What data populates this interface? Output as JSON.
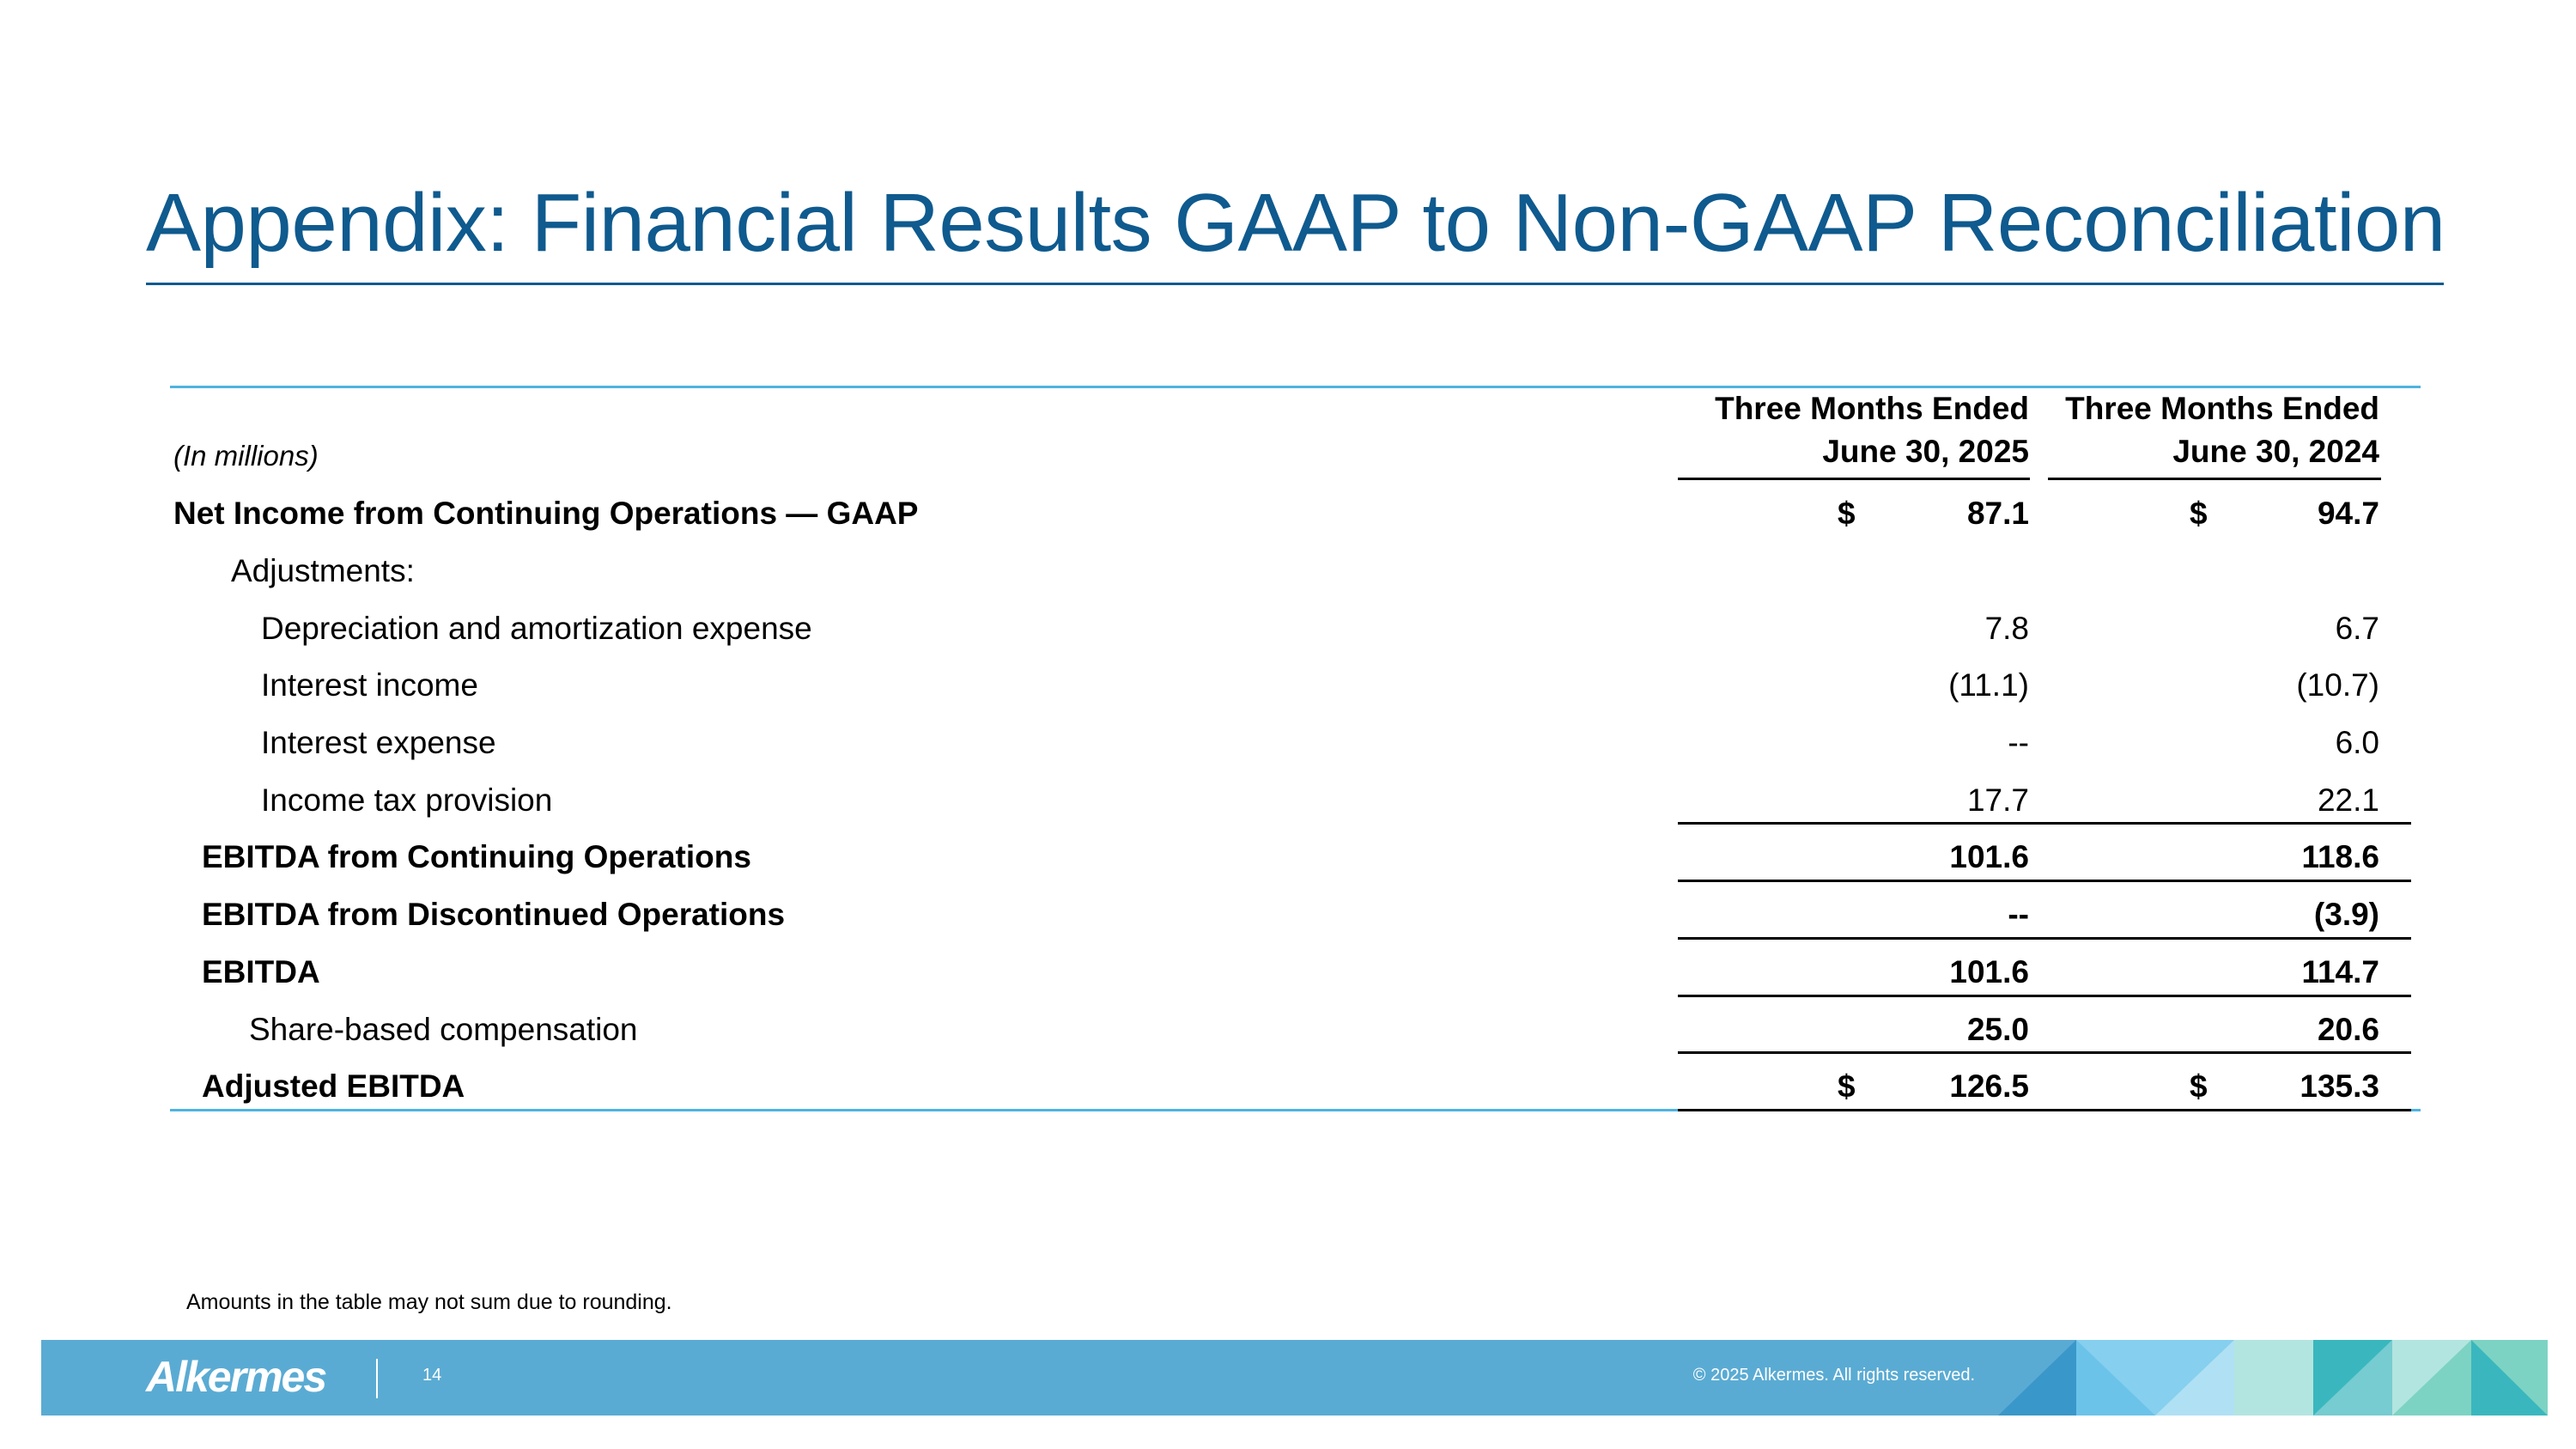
{
  "title": "Appendix: Financial Results GAAP to Non-GAAP Reconciliation",
  "table": {
    "units_label": "(In millions)",
    "columns": [
      {
        "line1": "Three Months Ended",
        "line2": "June 30, 2025"
      },
      {
        "line1": "Three Months Ended",
        "line2": "June 30, 2024"
      }
    ],
    "rows": [
      {
        "label": "Net Income from Continuing Operations — GAAP",
        "c1_prefix": "$",
        "c1": "87.1",
        "c2_prefix": "$",
        "c2": "94.7"
      },
      {
        "label": "Adjustments:",
        "c1": "",
        "c2": ""
      },
      {
        "label": "Depreciation and amortization expense",
        "c1": "7.8",
        "c2": "6.7"
      },
      {
        "label": "Interest income",
        "c1": "(11.1)",
        "c2": "(10.7)"
      },
      {
        "label": "Interest expense",
        "c1": "--",
        "c2": "6.0"
      },
      {
        "label": "Income tax provision",
        "c1": "17.7",
        "c2": "22.1"
      },
      {
        "label": "EBITDA from Continuing Operations",
        "c1": "101.6",
        "c2": "118.6"
      },
      {
        "label": "EBITDA from Discontinued Operations",
        "c1": "--",
        "c2": "(3.9)"
      },
      {
        "label": "EBITDA",
        "c1": "101.6",
        "c2": "114.7"
      },
      {
        "label": "Share-based compensation",
        "c1": "25.0",
        "c2": "20.6"
      },
      {
        "label": "Adjusted EBITDA",
        "c1_prefix": "$",
        "c1": "126.5",
        "c2_prefix": "$",
        "c2": "135.3"
      }
    ]
  },
  "footnote": "Amounts in the table may not sum due to rounding.",
  "footer": {
    "logo": "Alkermes",
    "page_number": "14",
    "copyright": "© 2025 Alkermes. All rights reserved."
  },
  "colors": {
    "title": "#0f5a8e",
    "accent_rule": "#4fb3e0",
    "footer_band": "#5aabd3"
  }
}
